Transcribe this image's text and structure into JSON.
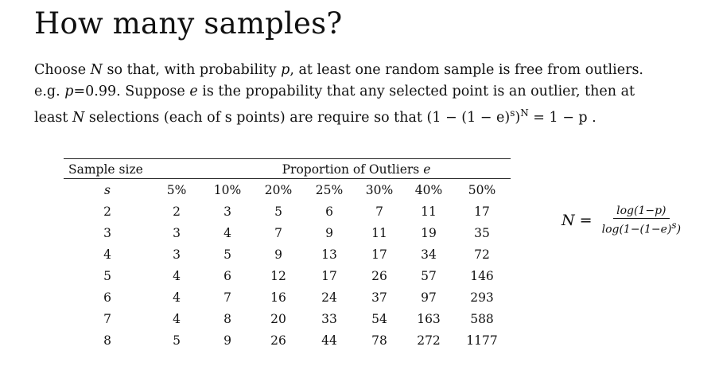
{
  "title": "How many samples?",
  "paragraph": {
    "l1_a": "Choose ",
    "l1_N": "N",
    "l1_b": " so that, with probability ",
    "l1_p": "p",
    "l1_c": ", at least one random sample is free from outliers.",
    "l2_a": "e.g. ",
    "l2_p": "p",
    "l2_b": "=0.99. Suppose ",
    "l2_e": "e",
    "l2_c": " is the propability that any selected point is an outlier, then at",
    "l3_a": "least ",
    "l3_N": "N",
    "l3_b": " selections (each of s points) are require so that ",
    "formula_base": "(1 − (1 − e)",
    "formula_s": "s",
    "formula_mid": ")",
    "formula_N": "N",
    "formula_end": " = 1 − p ."
  },
  "table": {
    "header_sample_size": "Sample size",
    "header_proportion": "Proportion of Outliers ",
    "header_proportion_var": "e",
    "columns": [
      "s",
      "5%",
      "10%",
      "20%",
      "25%",
      "30%",
      "40%",
      "50%"
    ],
    "rows": [
      [
        "2",
        "2",
        "3",
        "5",
        "6",
        "7",
        "11",
        "17"
      ],
      [
        "3",
        "3",
        "4",
        "7",
        "9",
        "11",
        "19",
        "35"
      ],
      [
        "4",
        "3",
        "5",
        "9",
        "13",
        "17",
        "34",
        "72"
      ],
      [
        "5",
        "4",
        "6",
        "12",
        "17",
        "26",
        "57",
        "146"
      ],
      [
        "6",
        "4",
        "7",
        "16",
        "24",
        "37",
        "97",
        "293"
      ],
      [
        "7",
        "4",
        "8",
        "20",
        "33",
        "54",
        "163",
        "588"
      ],
      [
        "8",
        "5",
        "9",
        "26",
        "44",
        "78",
        "272",
        "1177"
      ]
    ]
  },
  "n_formula": {
    "lhs": "N =",
    "numerator": "log(1−p)",
    "denominator_a": "log(1−(1−e)",
    "denominator_s": "s",
    "denominator_b": ")"
  }
}
